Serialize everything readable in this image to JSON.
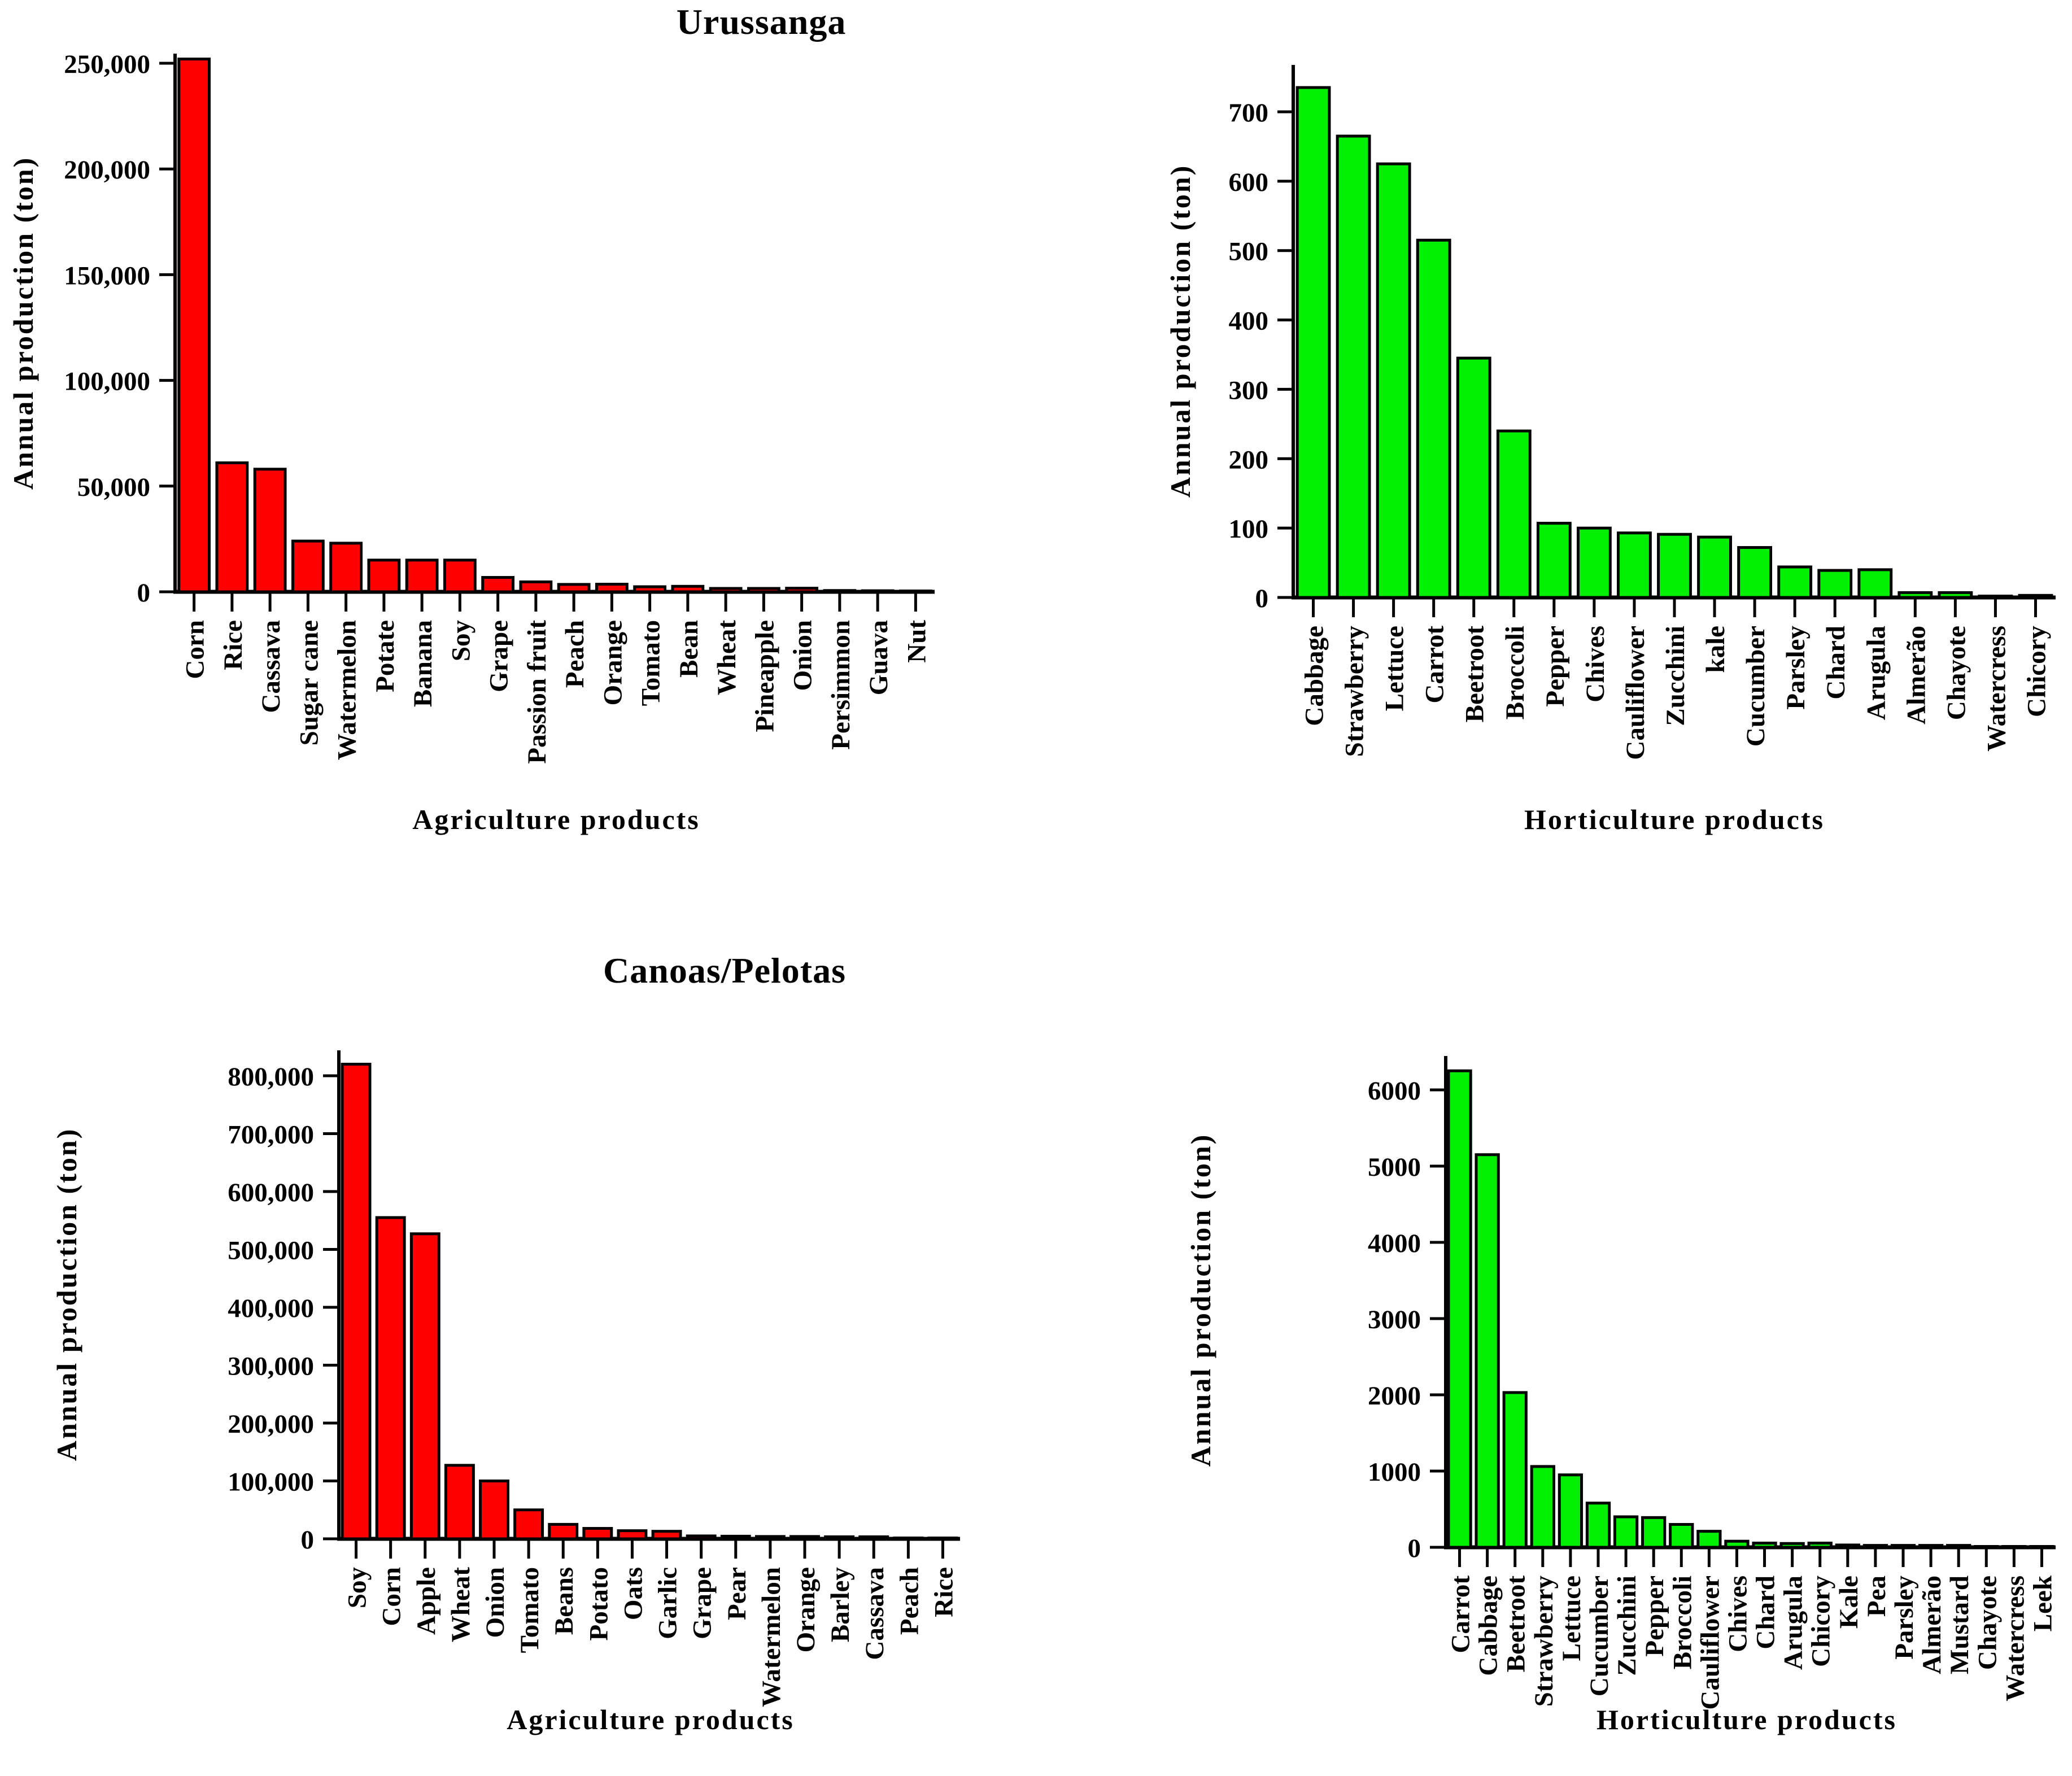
{
  "page": {
    "background": "#ffffff",
    "text_color": "#000000",
    "axis_color": "#000000"
  },
  "sections": [
    {
      "title": "Urussanga"
    },
    {
      "title": "Canoas/Pelotas"
    }
  ],
  "colors": {
    "agriculture_bar": "#FF0000",
    "horticulture_bar": "#00F000",
    "bar_border": "#000000"
  },
  "chart_data": [
    {
      "type": "bar",
      "region": "Urussanga",
      "title": "Urussanga — Agriculture",
      "xlabel": "Agriculture products",
      "ylabel": "Annual production (ton)",
      "bar_color": "#FF0000",
      "ylim": [
        0,
        250000
      ],
      "ytick_step": 50000,
      "number_format": "comma",
      "grid": false,
      "legend": false,
      "categories": [
        "Corn",
        "Rice",
        "Cassava",
        "Sugar cane",
        "Watermelon",
        "Potate",
        "Banana",
        "Soy",
        "Grape",
        "Passion fruit",
        "Peach",
        "Orange",
        "Tomato",
        "Bean",
        "Wheat",
        "Pineapple",
        "Onion",
        "Persimmon",
        "Guava",
        "Nut"
      ],
      "values": [
        252000,
        61000,
        58000,
        24000,
        23000,
        15000,
        15000,
        15000,
        6800,
        4700,
        3500,
        3600,
        2400,
        2600,
        1600,
        1600,
        1700,
        600,
        500,
        400
      ]
    },
    {
      "type": "bar",
      "region": "Urussanga",
      "title": "Urussanga — Horticulture",
      "xlabel": "Horticulture products",
      "ylabel": "Annual production (ton)",
      "bar_color": "#00F000",
      "ylim": [
        0,
        700
      ],
      "ytick_step": 100,
      "number_format": "plain",
      "grid": false,
      "legend": false,
      "categories": [
        "Cabbage",
        "Strawberry",
        "Lettuce",
        "Carrot",
        "Beetroot",
        "Broccoli",
        "Pepper",
        "Chives",
        "Cauliflower",
        "Zucchini",
        "kale",
        "Cucumber",
        "Parsley",
        "Chard",
        "Arugula",
        "Almerão",
        "Chayote",
        "Watercress",
        "Chicory"
      ],
      "values": [
        735,
        665,
        625,
        515,
        345,
        240,
        107,
        100,
        93,
        91,
        87,
        72,
        44,
        39,
        40,
        7,
        7,
        2,
        3
      ]
    },
    {
      "type": "bar",
      "region": "Canoas/Pelotas",
      "title": "Canoas/Pelotas — Agriculture",
      "xlabel": "Agriculture products",
      "ylabel": "Annual production (ton)",
      "bar_color": "#FF0000",
      "ylim": [
        0,
        800000
      ],
      "ytick_step": 100000,
      "number_format": "comma",
      "grid": false,
      "legend": false,
      "categories": [
        "Soy",
        "Corn",
        "Apple",
        "Wheat",
        "Onion",
        "Tomato",
        "Beans",
        "Potato",
        "Oats",
        "Garlic",
        "Grape",
        "Pear",
        "Watermelon",
        "Orange",
        "Barley",
        "Cassava",
        "Peach",
        "Rice"
      ],
      "values": [
        820000,
        555000,
        527000,
        127000,
        100000,
        50000,
        25000,
        18000,
        14000,
        13000,
        5000,
        4500,
        4000,
        4000,
        3500,
        3500,
        1500,
        1000
      ]
    },
    {
      "type": "bar",
      "region": "Canoas/Pelotas",
      "title": "Canoas/Pelotas — Horticulture",
      "xlabel": "Horticulture products",
      "ylabel": "Annual production (ton)",
      "bar_color": "#00F000",
      "ylim": [
        0,
        6000
      ],
      "ytick_step": 1000,
      "number_format": "plain",
      "grid": false,
      "legend": false,
      "categories": [
        "Carrot",
        "Cabbage",
        "Beetroot",
        "Strawberry",
        "Lettuce",
        "Cucumber",
        "Zucchini",
        "Pepper",
        "Broccoli",
        "Cauliflower",
        "Chives",
        "Chard",
        "Arugula",
        "Chicory",
        "Kale",
        "Pea",
        "Parsley",
        "Almerão",
        "Mustard",
        "Chayote",
        "Watercress",
        "Leek"
      ],
      "values": [
        6250,
        5150,
        2030,
        1060,
        950,
        580,
        400,
        390,
        300,
        210,
        80,
        55,
        50,
        55,
        30,
        25,
        25,
        25,
        25,
        10,
        5,
        3
      ]
    }
  ]
}
